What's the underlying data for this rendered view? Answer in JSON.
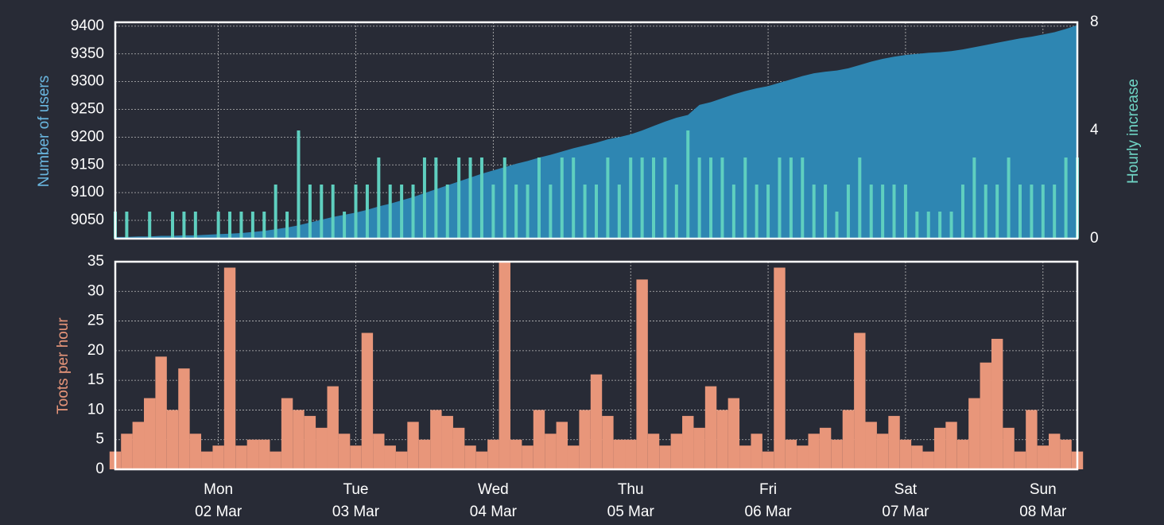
{
  "chart_data": [
    {
      "type": "area",
      "ylabel": "Number of users",
      "y2label": "Hourly increase",
      "ylim": [
        9017,
        9407
      ],
      "yticks": [
        9050,
        9100,
        9150,
        9200,
        9250,
        9300,
        9350,
        9400
      ],
      "y2lim": [
        0,
        8
      ],
      "y2ticks": [
        0,
        4,
        8
      ],
      "grid": true,
      "series": [
        {
          "type": "area",
          "color": "#2e86b2",
          "values": [
            9020,
            9020,
            9021,
            9021,
            9022,
            9022,
            9023,
            9023,
            9024,
            9025,
            9026,
            9027,
            9029,
            9031,
            9034,
            9037,
            9041,
            9046,
            9051,
            9056,
            9060,
            9064,
            9069,
            9075,
            9080,
            9086,
            9092,
            9099,
            9106,
            9113,
            9120,
            9127,
            9134,
            9140,
            9146,
            9152,
            9157,
            9163,
            9168,
            9174,
            9180,
            9185,
            9190,
            9196,
            9200,
            9205,
            9212,
            9220,
            9228,
            9235,
            9240,
            9258,
            9263,
            9270,
            9277,
            9283,
            9288,
            9292,
            9298,
            9304,
            9310,
            9315,
            9318,
            9320,
            9324,
            9330,
            9336,
            9341,
            9345,
            9348,
            9350,
            9352,
            9353,
            9355,
            9358,
            9362,
            9366,
            9370,
            9374,
            9378,
            9381,
            9385,
            9389,
            9395,
            9402
          ]
        },
        {
          "type": "bar",
          "axis": "y2",
          "color": "#5fcfbf",
          "values": [
            1,
            1,
            0,
            1,
            0,
            1,
            1,
            1,
            0,
            1,
            1,
            1,
            1,
            1,
            2,
            1,
            4,
            2,
            2,
            2,
            1,
            2,
            2,
            3,
            2,
            2,
            2,
            3,
            3,
            2,
            3,
            3,
            3,
            2,
            3,
            2,
            2,
            3,
            2,
            3,
            3,
            2,
            2,
            3,
            2,
            3,
            3,
            3,
            3,
            2,
            4,
            3,
            3,
            3,
            2,
            3,
            2,
            2,
            3,
            3,
            3,
            2,
            2,
            1,
            2,
            3,
            2,
            2,
            2,
            2,
            1,
            1,
            1,
            1,
            2,
            3,
            2,
            2,
            3,
            2,
            2,
            2,
            2,
            3,
            3
          ]
        }
      ]
    },
    {
      "type": "bar",
      "ylabel": "Toots per hour",
      "ylim": [
        0,
        35
      ],
      "yticks": [
        0,
        5,
        10,
        15,
        20,
        25,
        30,
        35
      ],
      "grid": true,
      "color": "#e8967a",
      "categories": [
        null,
        null,
        null,
        null,
        null,
        null,
        null,
        null,
        null,
        "Mon 02 Mar",
        null,
        null,
        null,
        null,
        null,
        null,
        null,
        null,
        null,
        null,
        null,
        "Tue 03 Mar",
        null,
        null,
        null,
        null,
        null,
        null,
        null,
        null,
        null,
        null,
        null,
        "Wed 04 Mar",
        null,
        null,
        null,
        null,
        null,
        null,
        null,
        null,
        null,
        null,
        null,
        "Thu 05 Mar",
        null,
        null,
        null,
        null,
        null,
        null,
        null,
        null,
        null,
        null,
        null,
        "Fri 06 Mar",
        null,
        null,
        null,
        null,
        null,
        null,
        null,
        null,
        null,
        null,
        null,
        "Sat 07 Mar",
        null,
        null,
        null,
        null,
        null,
        null,
        null,
        null,
        null,
        null,
        null,
        "Sun 08 Mar",
        null,
        null,
        null
      ],
      "values": [
        3,
        6,
        8,
        12,
        19,
        10,
        17,
        6,
        3,
        4,
        34,
        4,
        5,
        5,
        3,
        12,
        10,
        9,
        7,
        14,
        6,
        4,
        23,
        6,
        4,
        3,
        8,
        5,
        10,
        9,
        7,
        4,
        3,
        5,
        35,
        5,
        4,
        10,
        6,
        8,
        4,
        10,
        16,
        9,
        5,
        5,
        32,
        6,
        4,
        6,
        9,
        7,
        14,
        10,
        12,
        4,
        6,
        3,
        34,
        5,
        4,
        6,
        7,
        5,
        10,
        23,
        8,
        6,
        9,
        5,
        4,
        3,
        7,
        8,
        5,
        12,
        18,
        22,
        7,
        3,
        10,
        4,
        6,
        5,
        3
      ]
    }
  ]
}
